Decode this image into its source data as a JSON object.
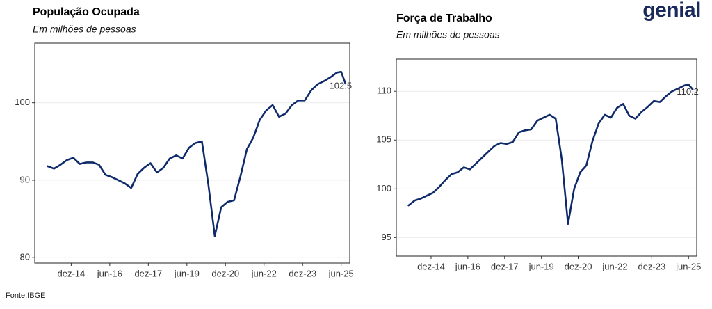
{
  "logo": "genial",
  "source": "Fonte:IBGE",
  "chart_data": [
    {
      "type": "line",
      "title": "População Ocupada",
      "subtitle": "Em milhões de pessoas",
      "x": [
        "2014-01",
        "2014-04",
        "2014-07",
        "2014-10",
        "2015-01",
        "2015-04",
        "2015-07",
        "2015-10",
        "2016-01",
        "2016-04",
        "2016-07",
        "2016-10",
        "2017-01",
        "2017-04",
        "2017-07",
        "2017-10",
        "2018-01",
        "2018-04",
        "2018-07",
        "2018-10",
        "2019-01",
        "2019-04",
        "2019-07",
        "2019-10",
        "2020-01",
        "2020-04",
        "2020-07",
        "2020-10",
        "2021-01",
        "2021-04",
        "2021-07",
        "2021-10",
        "2022-01",
        "2022-04",
        "2022-07",
        "2022-10",
        "2023-01",
        "2023-04",
        "2023-07",
        "2023-10",
        "2024-01",
        "2024-04",
        "2024-07",
        "2024-10",
        "2025-01",
        "2025-04",
        "2025-06",
        "2025-08"
      ],
      "values": [
        91.8,
        91.5,
        92.0,
        92.6,
        92.9,
        92.1,
        92.3,
        92.3,
        92.0,
        90.7,
        90.4,
        90.0,
        89.6,
        89.0,
        90.8,
        91.6,
        92.2,
        91.0,
        91.6,
        92.8,
        93.2,
        92.8,
        94.2,
        94.8,
        95.0,
        89.5,
        82.8,
        86.5,
        87.2,
        87.4,
        90.5,
        94.0,
        95.5,
        97.8,
        99.0,
        99.7,
        98.2,
        98.6,
        99.7,
        100.3,
        100.3,
        101.6,
        102.4,
        102.8,
        103.3,
        103.9,
        104.0,
        102.5
      ],
      "color": "#0f2a6b",
      "label_last": true,
      "xlim": [
        "2013-07",
        "2025-10"
      ],
      "xticks": [
        {
          "value": "2014-12",
          "label": "dez-14"
        },
        {
          "value": "2016-06",
          "label": "jun-16"
        },
        {
          "value": "2017-12",
          "label": "dez-17"
        },
        {
          "value": "2019-06",
          "label": "jun-19"
        },
        {
          "value": "2020-12",
          "label": "dez-20"
        },
        {
          "value": "2022-06",
          "label": "jun-22"
        },
        {
          "value": "2023-12",
          "label": "dez-23"
        },
        {
          "value": "2025-06",
          "label": "jun-25"
        }
      ],
      "ylim": [
        79.3,
        107.7
      ],
      "yticks": [
        80,
        90,
        100
      ],
      "grid": true
    },
    {
      "type": "line",
      "title": "Força de Trabalho",
      "subtitle": "Em milhões de pessoas",
      "x": [
        "2014-01",
        "2014-04",
        "2014-07",
        "2014-10",
        "2015-01",
        "2015-04",
        "2015-07",
        "2015-10",
        "2016-01",
        "2016-04",
        "2016-07",
        "2016-10",
        "2017-01",
        "2017-04",
        "2017-07",
        "2017-10",
        "2018-01",
        "2018-04",
        "2018-07",
        "2018-10",
        "2019-01",
        "2019-04",
        "2019-07",
        "2019-10",
        "2020-01",
        "2020-04",
        "2020-07",
        "2020-10",
        "2021-01",
        "2021-04",
        "2021-07",
        "2021-10",
        "2022-01",
        "2022-04",
        "2022-07",
        "2022-10",
        "2023-01",
        "2023-04",
        "2023-07",
        "2023-10",
        "2024-01",
        "2024-04",
        "2024-07",
        "2024-10",
        "2025-01",
        "2025-04",
        "2025-06",
        "2025-08"
      ],
      "values": [
        98.3,
        98.8,
        99.0,
        99.3,
        99.6,
        100.2,
        100.9,
        101.5,
        101.7,
        102.2,
        102.0,
        102.6,
        103.2,
        103.8,
        104.4,
        104.7,
        104.6,
        104.8,
        105.8,
        106.0,
        106.1,
        107.0,
        107.3,
        107.6,
        107.2,
        103.0,
        96.4,
        100.0,
        101.7,
        102.4,
        104.9,
        106.7,
        107.6,
        107.3,
        108.3,
        108.7,
        107.5,
        107.2,
        107.9,
        108.4,
        109.0,
        108.9,
        109.5,
        110.0,
        110.3,
        110.6,
        110.7,
        110.2
      ],
      "color": "#0f2a6b",
      "label_last": true,
      "xlim": [
        "2013-07",
        "2025-10"
      ],
      "xticks": [
        {
          "value": "2014-12",
          "label": "dez-14"
        },
        {
          "value": "2016-06",
          "label": "jun-16"
        },
        {
          "value": "2017-12",
          "label": "dez-17"
        },
        {
          "value": "2019-06",
          "label": "jun-19"
        },
        {
          "value": "2020-12",
          "label": "dez-20"
        },
        {
          "value": "2022-06",
          "label": "jun-22"
        },
        {
          "value": "2023-12",
          "label": "dez-23"
        },
        {
          "value": "2025-06",
          "label": "jun-25"
        }
      ],
      "ylim": [
        93.1,
        113.3
      ],
      "yticks": [
        95,
        100,
        105,
        110
      ],
      "grid": true
    }
  ]
}
